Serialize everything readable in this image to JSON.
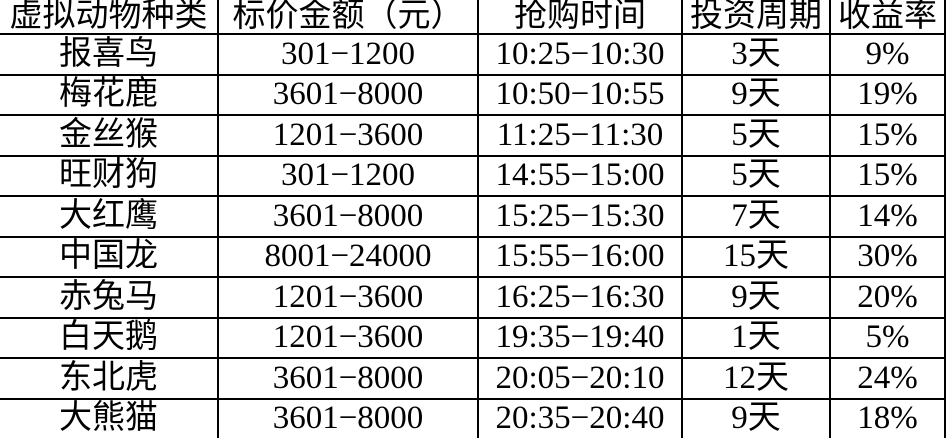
{
  "table": {
    "headers": [
      "虚拟动物种类",
      "标价金额（元）",
      "抢购时间",
      "投资周期",
      "收益率"
    ],
    "rows": [
      [
        "报喜鸟",
        "301−1200",
        "10:25−10:30",
        "3天",
        "9%"
      ],
      [
        "梅花鹿",
        "3601−8000",
        "10:50−10:55",
        "9天",
        "19%"
      ],
      [
        "金丝猴",
        "1201−3600",
        "11:25−11:30",
        "5天",
        "15%"
      ],
      [
        "旺财狗",
        "301−1200",
        "14:55−15:00",
        "5天",
        "15%"
      ],
      [
        "大红鹰",
        "3601−8000",
        "15:25−15:30",
        "7天",
        "14%"
      ],
      [
        "中国龙",
        "8001−24000",
        "15:55−16:00",
        "15天",
        "30%"
      ],
      [
        "赤兔马",
        "1201−3600",
        "16:25−16:30",
        "9天",
        "20%"
      ],
      [
        "白天鹅",
        "1201−3600",
        "19:35−19:40",
        "1天",
        "5%"
      ],
      [
        "东北虎",
        "3601−8000",
        "20:05−20:10",
        "12天",
        "24%"
      ],
      [
        "大熊猫",
        "3601−8000",
        "20:35−20:40",
        "9天",
        "18%"
      ]
    ]
  },
  "colors": {
    "border": "#000000",
    "text": "#000000",
    "background": "#ffffff"
  }
}
